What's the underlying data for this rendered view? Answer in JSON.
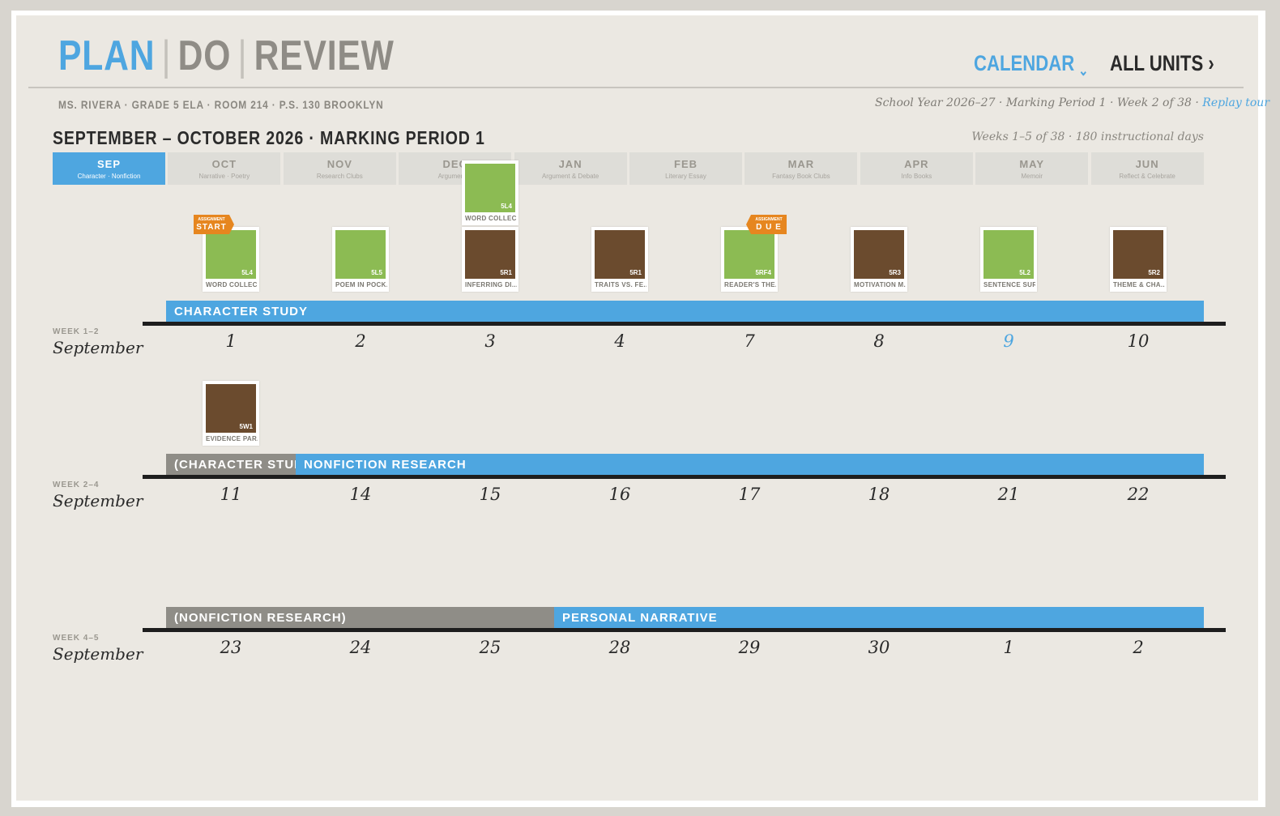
{
  "brand": {
    "plan": "PLAN",
    "divider": "|",
    "do": "DO",
    "review": "REVIEW"
  },
  "nav": {
    "calendar": "CALENDAR",
    "calendar_chevron": "⌄",
    "all_units": "ALL UNITS ›"
  },
  "teacher_line": "MS. RIVERA · GRADE 5 ELA · ROOM 214 · P.S. 130 BROOKLYN",
  "school_meta": "School Year 2026–27 · Marking Period 1 · Week 2 of 38 ·",
  "replay_tour": "Replay tour",
  "period_title": "SEPTEMBER – OCTOBER 2026 · MARKING PERIOD 1",
  "weeks_meta": "Weeks 1–5 of 38 · 180 instructional days",
  "months": [
    {
      "name": "SEP",
      "sub": "Character · Nonfiction",
      "active": true
    },
    {
      "name": "OCT",
      "sub": "Narrative · Poetry"
    },
    {
      "name": "NOV",
      "sub": "Research Clubs"
    },
    {
      "name": "DEC",
      "sub": "Argument &"
    },
    {
      "name": "JAN",
      "sub": "Argument & Debate"
    },
    {
      "name": "FEB",
      "sub": "Literary Essay"
    },
    {
      "name": "MAR",
      "sub": "Fantasy Book Clubs"
    },
    {
      "name": "APR",
      "sub": "Info Books"
    },
    {
      "name": "MAY",
      "sub": "Memoir"
    },
    {
      "name": "JUN",
      "sub": "Reflect & Celebrate"
    }
  ],
  "cards": [
    {
      "code": "5L4",
      "title": "WORD COLLEC...",
      "color": "green"
    },
    {
      "code": "5L5",
      "title": "POEM IN POCK...",
      "color": "green"
    },
    {
      "code": "5R1",
      "title": "INFERRING DI...",
      "color": "brown"
    },
    {
      "code": "5R1",
      "title": "TRAITS VS. FE...",
      "color": "brown"
    },
    {
      "code": "5RF4",
      "title": "READER'S THE...",
      "color": "green"
    },
    {
      "code": "5R3",
      "title": "MOTIVATION M...",
      "color": "brown"
    },
    {
      "code": "5L2",
      "title": "SENTENCE SUR...",
      "color": "green"
    },
    {
      "code": "5R2",
      "title": "THEME & CHA...",
      "color": "brown"
    },
    {
      "code": "5L4",
      "title": "WORD COLLEC...",
      "color": "green"
    },
    {
      "code": "5W1",
      "title": "EVIDENCE PAR...",
      "color": "brown"
    }
  ],
  "tags": {
    "start": {
      "small": "ASSIGNMENT",
      "big": "START"
    },
    "due": {
      "small": "ASSIGNMENT",
      "big": "D U E"
    }
  },
  "weeks": [
    {
      "label": "WEEK 1–2",
      "month": "September",
      "days": [
        "1",
        "2",
        "3",
        "4",
        "7",
        "8",
        "9",
        "10"
      ],
      "today_index": 6,
      "bands": [
        {
          "label": "CHARACTER STUDY",
          "style": "blue"
        }
      ]
    },
    {
      "label": "WEEK 2–4",
      "month": "September",
      "days": [
        "11",
        "14",
        "15",
        "16",
        "17",
        "18",
        "21",
        "22"
      ],
      "bands": [
        {
          "label": "(CHARACTER STUDY)",
          "style": "gray"
        },
        {
          "label": "NONFICTION RESEARCH",
          "style": "blue"
        }
      ]
    },
    {
      "label": "WEEK 4–5",
      "month": "September",
      "days": [
        "23",
        "24",
        "25",
        "28",
        "29",
        "30",
        "1",
        "2"
      ],
      "bands": [
        {
          "label": "(NONFICTION RESEARCH)",
          "style": "gray"
        },
        {
          "label": "PERSONAL NARRATIVE",
          "style": "blue"
        }
      ]
    }
  ]
}
